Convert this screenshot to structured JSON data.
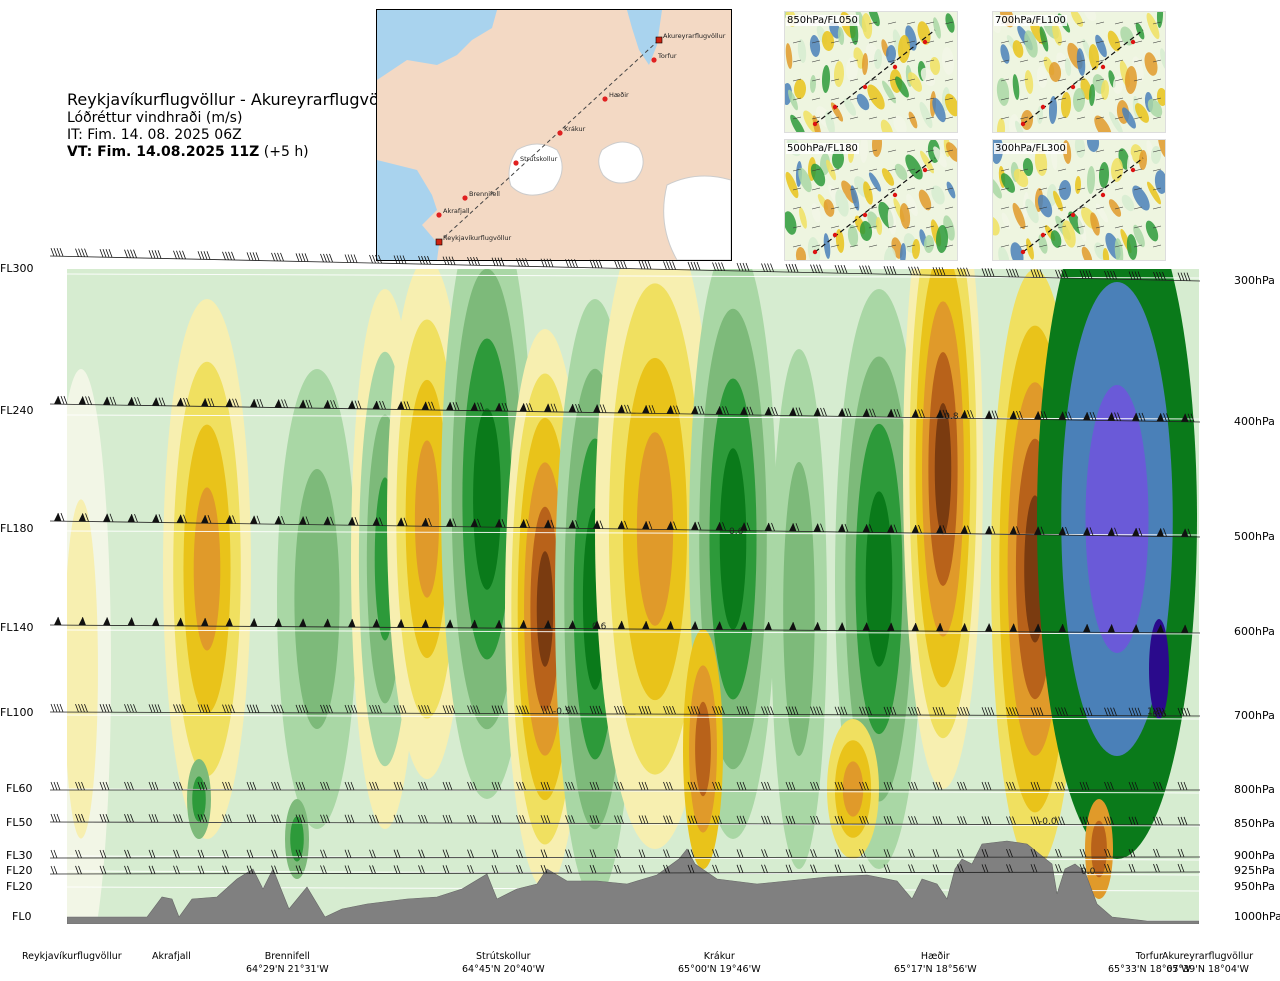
{
  "header": {
    "route": "Reykjavíkurflugvöllur - Akureyrarflugvöllur",
    "variable": "Lóðréttur vindhraði (m/s)",
    "issue": "IT: Fim. 14. 08. 2025 06Z",
    "valid_bold": "VT: Fim. 14.08.2025 11Z",
    "valid_rest": " (+5 h)"
  },
  "map": {
    "waypoints": [
      "Reykjavíkurflugvöllur",
      "Akrafjall",
      "Brennifell",
      "Strútskollur",
      "Krákur",
      "Hæðir",
      "Torfur",
      "Akureyrarflugvöllur"
    ],
    "colors": {
      "land": "#f3d9c4",
      "sea": "#a9d3ee",
      "ice": "#ffffff",
      "route": "#444444",
      "point": "#e02020"
    }
  },
  "panels": [
    {
      "label": "850hPa/FL050"
    },
    {
      "label": "700hPa/FL100"
    },
    {
      "label": "500hPa/FL180"
    },
    {
      "label": "300hPa/FL300"
    }
  ],
  "chart_data": {
    "type": "heatmap",
    "title": "Lóðréttur vindhraði (m/s)",
    "flight_levels": [
      "FL300",
      "FL240",
      "FL180",
      "FL140",
      "FL100",
      "FL60",
      "FL50",
      "FL30",
      "FL20",
      "FL20",
      "FL0"
    ],
    "pressure_levels": [
      "300hPa",
      "400hPa",
      "500hPa",
      "600hPa",
      "700hPa",
      "800hPa",
      "850hPa",
      "900hPa",
      "925hPa",
      "950hPa",
      "1000hPa"
    ],
    "locations": [
      {
        "name": "Reykjavíkurflugvöllur",
        "coord": ""
      },
      {
        "name": "Akrafjall",
        "coord": ""
      },
      {
        "name": "Brennifell",
        "coord": "64°29'N 21°31'W"
      },
      {
        "name": "Strútskollur",
        "coord": "64°45'N 20°40'W"
      },
      {
        "name": "Krákur",
        "coord": "65°00'N 19°46'W"
      },
      {
        "name": "Hæðir",
        "coord": "65°17'N 18°56'W"
      },
      {
        "name": "Torfur",
        "coord": "65°33'N 18°07'W"
      },
      {
        "name": "Akureyrarflugvöllur",
        "coord": "65°39'N 18°04'W"
      }
    ],
    "contour_labels": [
      "-0.8",
      "0.6",
      "0.6",
      "-0.5",
      "1.8",
      "-0.6",
      "-0.0",
      "0.0"
    ],
    "palette": {
      "strong_up": "#2a0a8c",
      "up_4": "#6a5ad8",
      "up_3": "#4a80b8",
      "up_2": "#0a7a1a",
      "up_1": "#2d9a3a",
      "weak_up_2": "#7dba7a",
      "weak_up_1": "#a9d7a5",
      "neutral_up": "#d6ecd0",
      "neutral": "#f2f6e6",
      "neutral_down": "#f7efb0",
      "weak_down_1": "#f0e060",
      "weak_down_2": "#e9c31a",
      "down_1": "#e09a2a",
      "down_2": "#b8621a",
      "strong_down": "#7a3b10",
      "terrain": "#808080"
    },
    "grid": true
  }
}
